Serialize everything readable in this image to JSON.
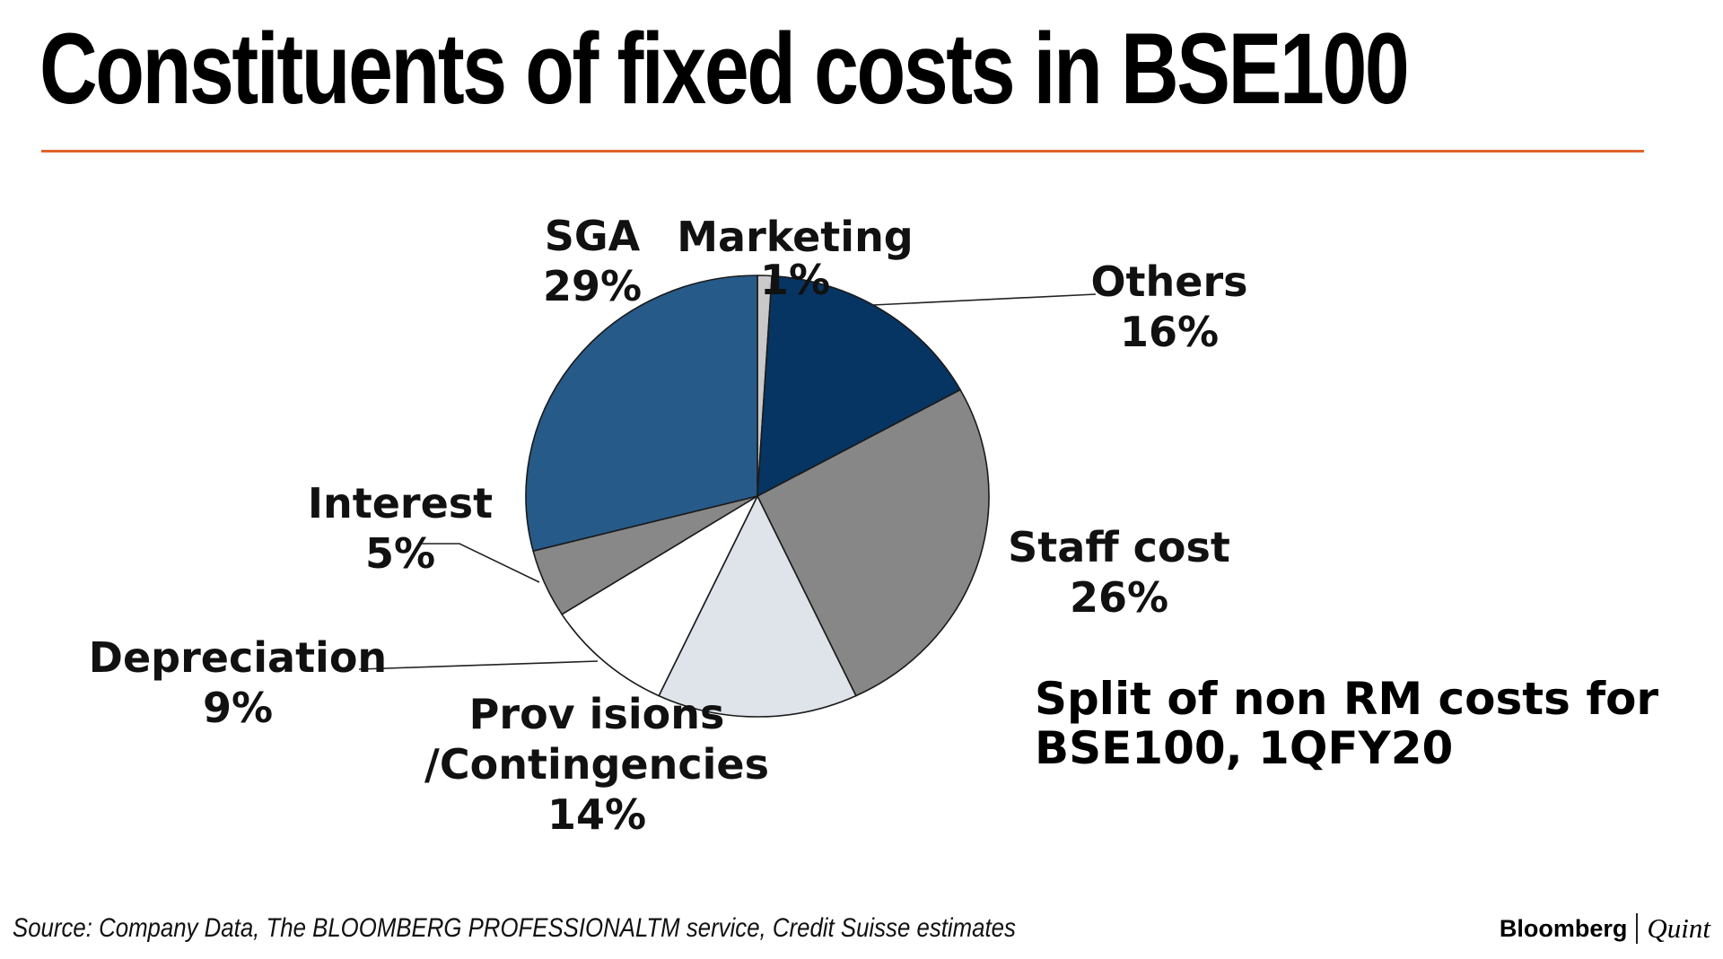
{
  "title": "Constituents of fixed costs in BSE100",
  "colors": {
    "accent_rule": "#e2632c",
    "slice_outline": "#1a1a1a",
    "leader_line": "#222222"
  },
  "chart_data": {
    "type": "pie",
    "title": "Constituents of fixed costs in BSE100",
    "note_lines": [
      "Split of non RM costs  for",
      "BSE100,  1QFY20"
    ],
    "slices": [
      {
        "name": "Marketing",
        "value": 1,
        "label_lines": [
          "Marketing",
          "1%"
        ],
        "color": "#c9c9c9"
      },
      {
        "name": "Others",
        "value": 16,
        "label_lines": [
          "Others",
          "16%"
        ],
        "color": "#063563"
      },
      {
        "name": "Staff cost",
        "value": 26,
        "label_lines": [
          "Staff cost",
          "26%"
        ],
        "color": "#878787"
      },
      {
        "name": "Provisions /Contingencies",
        "value": 14,
        "label_lines": [
          "Prov isions",
          "/Contingencies",
          "14%"
        ],
        "color": "#dee4ea"
      },
      {
        "name": "Depreciation",
        "value": 9,
        "label_lines": [
          "Depreciation",
          "9%"
        ],
        "color": "#ffffff"
      },
      {
        "name": "Interest",
        "value": 5,
        "label_lines": [
          "Interest",
          "5%"
        ],
        "color": "#888888"
      },
      {
        "name": "SGA",
        "value": 29,
        "label_lines": [
          "SGA",
          "29%"
        ],
        "color": "#265a89"
      }
    ]
  },
  "footer": {
    "source": "Source: Company Data, The BLOOMBERG PROFESSIONALTM service, Credit Suisse estimates",
    "brand_primary": "Bloomberg",
    "brand_secondary": "Quint"
  }
}
